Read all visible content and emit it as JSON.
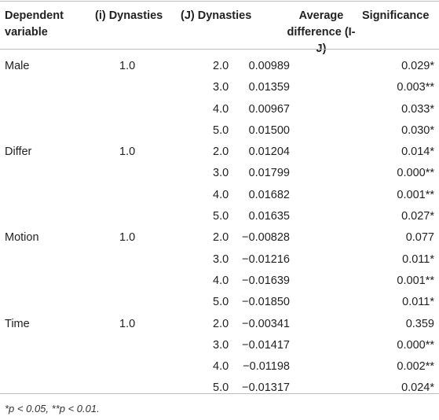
{
  "header": {
    "dependent_variable": "Dependent variable",
    "i_dynasties": "(i) Dynasties",
    "j_dynasties": "(J) Dynasties",
    "average_difference": "Average difference (I-J)",
    "significance": "Significance"
  },
  "rows": [
    {
      "dep": "Male",
      "i": "1.0",
      "j": "2.0",
      "avg": "0.00989",
      "sig": "0.029*"
    },
    {
      "dep": "",
      "i": "",
      "j": "3.0",
      "avg": "0.01359",
      "sig": "0.003**"
    },
    {
      "dep": "",
      "i": "",
      "j": "4.0",
      "avg": "0.00967",
      "sig": "0.033*"
    },
    {
      "dep": "",
      "i": "",
      "j": "5.0",
      "avg": "0.01500",
      "sig": "0.030*"
    },
    {
      "dep": "Differ",
      "i": "1.0",
      "j": "2.0",
      "avg": "0.01204",
      "sig": "0.014*"
    },
    {
      "dep": "",
      "i": "",
      "j": "3.0",
      "avg": "0.01799",
      "sig": "0.000**"
    },
    {
      "dep": "",
      "i": "",
      "j": "4.0",
      "avg": "0.01682",
      "sig": "0.001**"
    },
    {
      "dep": "",
      "i": "",
      "j": "5.0",
      "avg": "0.01635",
      "sig": "0.027*"
    },
    {
      "dep": "Motion",
      "i": "1.0",
      "j": "2.0",
      "avg": "−0.00828",
      "sig": "0.077"
    },
    {
      "dep": "",
      "i": "",
      "j": "3.0",
      "avg": "−0.01216",
      "sig": "0.011*"
    },
    {
      "dep": "",
      "i": "",
      "j": "4.0",
      "avg": "−0.01639",
      "sig": "0.001**"
    },
    {
      "dep": "",
      "i": "",
      "j": "5.0",
      "avg": "−0.01850",
      "sig": "0.011*"
    },
    {
      "dep": "Time",
      "i": "1.0",
      "j": "2.0",
      "avg": "−0.00341",
      "sig": "0.359"
    },
    {
      "dep": "",
      "i": "",
      "j": "3.0",
      "avg": "−0.01417",
      "sig": "0.000**"
    },
    {
      "dep": "",
      "i": "",
      "j": "4.0",
      "avg": "−0.01198",
      "sig": "0.002**"
    },
    {
      "dep": "",
      "i": "",
      "j": "5.0",
      "avg": "−0.01317",
      "sig": "0.024*"
    }
  ],
  "footnote": "*p < 0.05, **p < 0.01."
}
